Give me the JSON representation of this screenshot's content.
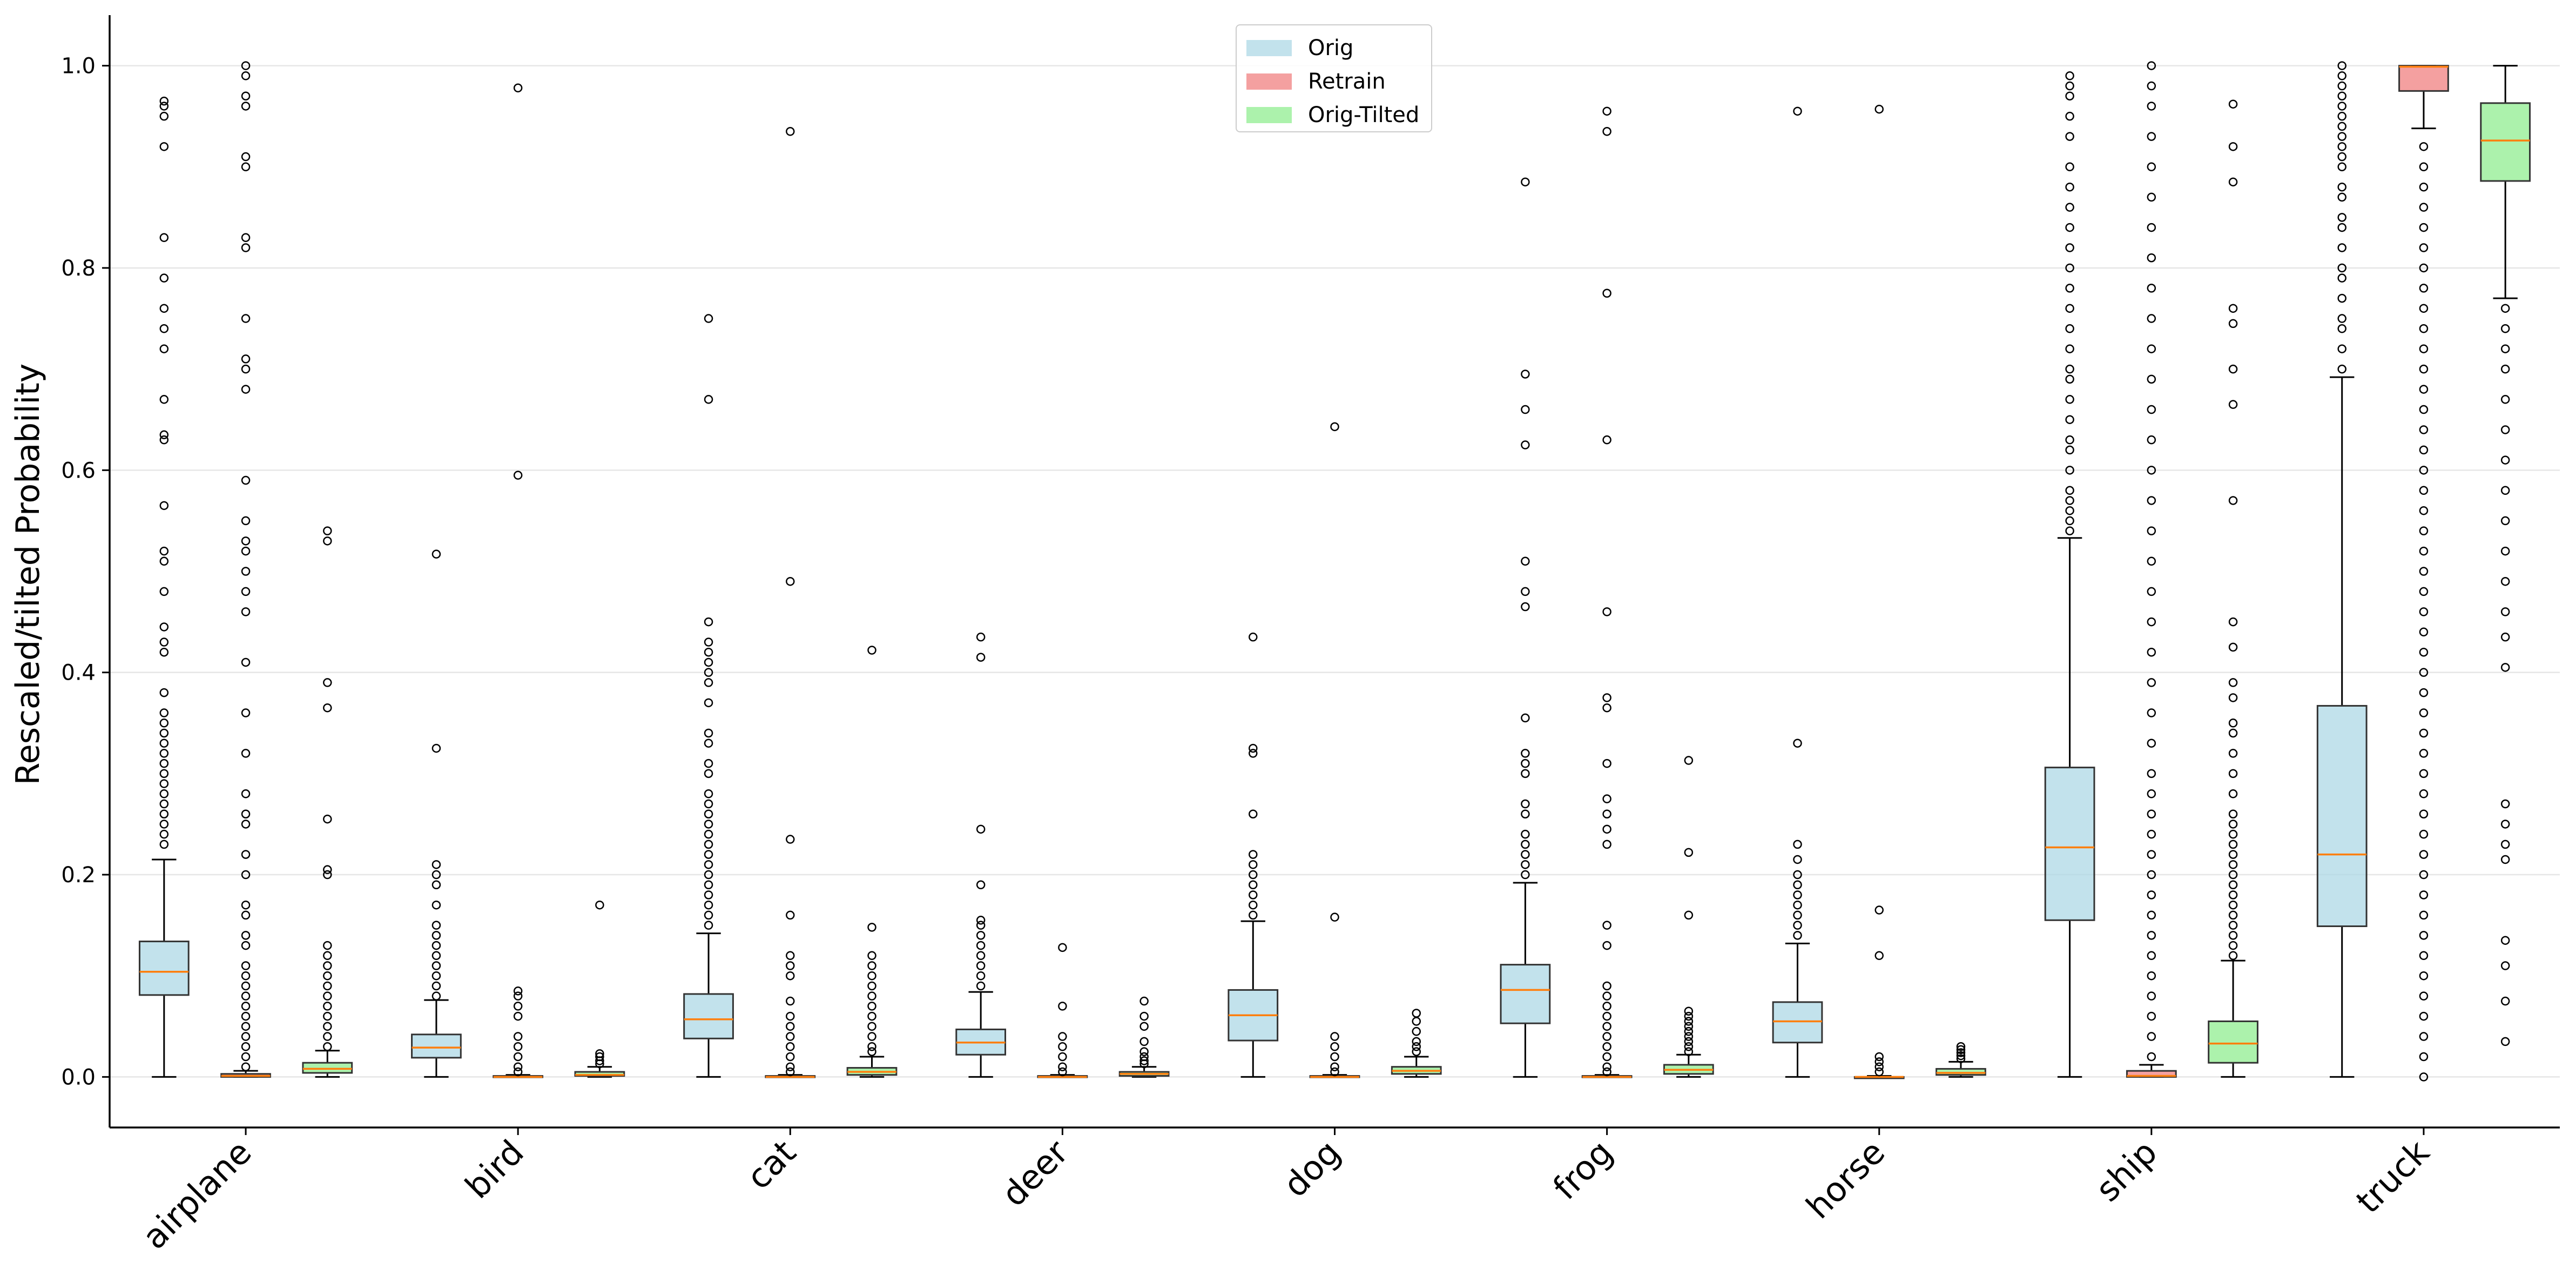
{
  "chart_data": {
    "type": "box",
    "ylabel": "Rescaled/tilted Probability",
    "xlabel": "",
    "ylim": [
      -0.05,
      1.05
    ],
    "yticks": [
      "0.0",
      "0.2",
      "0.4",
      "0.6",
      "0.8",
      "1.0"
    ],
    "grid": "horizontal",
    "legend_position": "top-center",
    "categories": [
      "airplane",
      "bird",
      "cat",
      "deer",
      "dog",
      "frog",
      "horse",
      "ship",
      "truck"
    ],
    "series": [
      {
        "name": "Orig",
        "color": "#add8e6",
        "boxes": [
          {
            "whislo": 0.0,
            "q1": 0.081,
            "med": 0.104,
            "q3": 0.134,
            "whishi": 0.215,
            "fliers": [
              0.23,
              0.24,
              0.25,
              0.26,
              0.27,
              0.28,
              0.29,
              0.3,
              0.31,
              0.32,
              0.33,
              0.34,
              0.35,
              0.36,
              0.38,
              0.42,
              0.43,
              0.445,
              0.48,
              0.51,
              0.52,
              0.565,
              0.63,
              0.635,
              0.67,
              0.72,
              0.74,
              0.76,
              0.79,
              0.83,
              0.92,
              0.95,
              0.96,
              0.965
            ]
          },
          {
            "whislo": 0.0,
            "q1": 0.019,
            "med": 0.029,
            "q3": 0.042,
            "whishi": 0.076,
            "fliers": [
              0.08,
              0.09,
              0.1,
              0.11,
              0.12,
              0.13,
              0.14,
              0.15,
              0.17,
              0.19,
              0.2,
              0.21,
              0.325,
              0.517
            ]
          },
          {
            "whislo": 0.0,
            "q1": 0.038,
            "med": 0.057,
            "q3": 0.082,
            "whishi": 0.142,
            "fliers": [
              0.15,
              0.16,
              0.17,
              0.18,
              0.19,
              0.2,
              0.21,
              0.22,
              0.23,
              0.24,
              0.25,
              0.26,
              0.27,
              0.28,
              0.3,
              0.31,
              0.33,
              0.34,
              0.37,
              0.39,
              0.4,
              0.41,
              0.42,
              0.43,
              0.45,
              0.67,
              0.75
            ]
          },
          {
            "whislo": 0.0,
            "q1": 0.022,
            "med": 0.034,
            "q3": 0.047,
            "whishi": 0.084,
            "fliers": [
              0.09,
              0.1,
              0.11,
              0.12,
              0.13,
              0.14,
              0.15,
              0.155,
              0.19,
              0.245,
              0.415,
              0.435
            ]
          },
          {
            "whislo": 0.0,
            "q1": 0.036,
            "med": 0.061,
            "q3": 0.086,
            "whishi": 0.154,
            "fliers": [
              0.16,
              0.17,
              0.18,
              0.19,
              0.2,
              0.21,
              0.22,
              0.26,
              0.32,
              0.325,
              0.435
            ]
          },
          {
            "whislo": 0.0,
            "q1": 0.053,
            "med": 0.086,
            "q3": 0.111,
            "whishi": 0.192,
            "fliers": [
              0.2,
              0.21,
              0.22,
              0.23,
              0.24,
              0.26,
              0.27,
              0.3,
              0.31,
              0.32,
              0.355,
              0.465,
              0.48,
              0.51,
              0.625,
              0.66,
              0.695,
              0.885
            ]
          },
          {
            "whislo": 0.0,
            "q1": 0.034,
            "med": 0.055,
            "q3": 0.074,
            "whishi": 0.132,
            "fliers": [
              0.14,
              0.15,
              0.16,
              0.17,
              0.18,
              0.19,
              0.2,
              0.215,
              0.23,
              0.33,
              0.955
            ]
          },
          {
            "whislo": 0.0,
            "q1": 0.155,
            "med": 0.227,
            "q3": 0.306,
            "whishi": 0.533,
            "fliers": [
              0.54,
              0.55,
              0.56,
              0.57,
              0.58,
              0.6,
              0.62,
              0.63,
              0.65,
              0.67,
              0.69,
              0.7,
              0.72,
              0.74,
              0.76,
              0.78,
              0.8,
              0.82,
              0.84,
              0.86,
              0.88,
              0.9,
              0.93,
              0.95,
              0.97,
              0.98,
              0.99
            ]
          },
          {
            "whislo": 0.0,
            "q1": 0.149,
            "med": 0.22,
            "q3": 0.367,
            "whishi": 0.692,
            "fliers": [
              0.7,
              0.72,
              0.74,
              0.75,
              0.77,
              0.79,
              0.8,
              0.82,
              0.84,
              0.85,
              0.87,
              0.88,
              0.9,
              0.91,
              0.92,
              0.93,
              0.94,
              0.95,
              0.96,
              0.97,
              0.98,
              0.99,
              1.0
            ]
          }
        ]
      },
      {
        "name": "Retrain",
        "color": "#f08080",
        "boxes": [
          {
            "whislo": 0.0,
            "q1": 0.0,
            "med": 0.001,
            "q3": 0.003,
            "whishi": 0.006,
            "fliers": [
              0.01,
              0.02,
              0.03,
              0.04,
              0.05,
              0.06,
              0.07,
              0.08,
              0.09,
              0.1,
              0.11,
              0.13,
              0.14,
              0.16,
              0.17,
              0.2,
              0.22,
              0.25,
              0.26,
              0.28,
              0.32,
              0.36,
              0.41,
              0.46,
              0.48,
              0.5,
              0.52,
              0.53,
              0.55,
              0.59,
              0.68,
              0.7,
              0.71,
              0.75,
              0.82,
              0.83,
              0.9,
              0.91,
              0.96,
              0.97,
              0.99,
              1.0
            ]
          },
          {
            "whislo": 0.0,
            "q1": 0.0,
            "med": 0.0,
            "q3": 0.001,
            "whishi": 0.002,
            "fliers": [
              0.005,
              0.01,
              0.02,
              0.03,
              0.04,
              0.06,
              0.07,
              0.08,
              0.085,
              0.595,
              0.978
            ]
          },
          {
            "whislo": 0.0,
            "q1": 0.0,
            "med": 0.0,
            "q3": 0.001,
            "whishi": 0.002,
            "fliers": [
              0.005,
              0.01,
              0.02,
              0.03,
              0.04,
              0.05,
              0.06,
              0.075,
              0.1,
              0.11,
              0.12,
              0.16,
              0.235,
              0.49,
              0.935
            ]
          },
          {
            "whislo": 0.0,
            "q1": 0.0,
            "med": 0.0,
            "q3": 0.001,
            "whishi": 0.002,
            "fliers": [
              0.005,
              0.01,
              0.02,
              0.03,
              0.04,
              0.07,
              0.128
            ]
          },
          {
            "whislo": 0.0,
            "q1": 0.0,
            "med": 0.0,
            "q3": 0.001,
            "whishi": 0.002,
            "fliers": [
              0.005,
              0.01,
              0.02,
              0.03,
              0.04,
              0.158,
              0.643
            ]
          },
          {
            "whislo": 0.0,
            "q1": 0.0,
            "med": 0.0,
            "q3": 0.001,
            "whishi": 0.002,
            "fliers": [
              0.005,
              0.01,
              0.02,
              0.03,
              0.04,
              0.05,
              0.06,
              0.07,
              0.08,
              0.09,
              0.13,
              0.15,
              0.23,
              0.245,
              0.26,
              0.275,
              0.31,
              0.365,
              0.375,
              0.46,
              0.63,
              0.775,
              0.935,
              0.955
            ]
          },
          {
            "whislo": 0.0,
            "q1": 0.0,
            "med": 0.0,
            "q3": 0.0,
            "whishi": 0.001,
            "fliers": [
              0.005,
              0.01,
              0.015,
              0.02,
              0.12,
              0.165,
              0.957
            ]
          },
          {
            "whislo": 0.0,
            "q1": 0.0,
            "med": 0.001,
            "q3": 0.006,
            "whishi": 0.012,
            "fliers": [
              0.02,
              0.04,
              0.06,
              0.08,
              0.1,
              0.12,
              0.14,
              0.16,
              0.18,
              0.2,
              0.22,
              0.24,
              0.26,
              0.28,
              0.3,
              0.33,
              0.36,
              0.39,
              0.42,
              0.45,
              0.48,
              0.51,
              0.54,
              0.57,
              0.6,
              0.63,
              0.66,
              0.69,
              0.72,
              0.75,
              0.78,
              0.81,
              0.84,
              0.87,
              0.9,
              0.93,
              0.96,
              0.98,
              1.0
            ]
          },
          {
            "whislo": 0.938,
            "q1": 0.975,
            "med": 0.999,
            "q3": 1.0,
            "whishi": 1.0,
            "fliers": [
              0.0,
              0.02,
              0.04,
              0.06,
              0.08,
              0.1,
              0.12,
              0.14,
              0.16,
              0.18,
              0.2,
              0.22,
              0.24,
              0.26,
              0.28,
              0.3,
              0.32,
              0.34,
              0.36,
              0.38,
              0.4,
              0.42,
              0.44,
              0.46,
              0.48,
              0.5,
              0.52,
              0.54,
              0.56,
              0.58,
              0.6,
              0.62,
              0.64,
              0.66,
              0.68,
              0.7,
              0.72,
              0.74,
              0.76,
              0.78,
              0.8,
              0.82,
              0.84,
              0.86,
              0.88,
              0.9,
              0.92
            ]
          }
        ]
      },
      {
        "name": "Orig-Tilted",
        "color": "#90ee90",
        "boxes": [
          {
            "whislo": 0.0,
            "q1": 0.004,
            "med": 0.008,
            "q3": 0.014,
            "whishi": 0.026,
            "fliers": [
              0.03,
              0.04,
              0.05,
              0.06,
              0.07,
              0.08,
              0.09,
              0.1,
              0.11,
              0.12,
              0.13,
              0.2,
              0.205,
              0.255,
              0.365,
              0.39,
              0.53,
              0.54
            ]
          },
          {
            "whislo": 0.0,
            "q1": 0.001,
            "med": 0.002,
            "q3": 0.005,
            "whishi": 0.01,
            "fliers": [
              0.013,
              0.016,
              0.02,
              0.023,
              0.17
            ]
          },
          {
            "whislo": 0.0,
            "q1": 0.002,
            "med": 0.005,
            "q3": 0.009,
            "whishi": 0.02,
            "fliers": [
              0.025,
              0.03,
              0.04,
              0.05,
              0.06,
              0.07,
              0.08,
              0.09,
              0.1,
              0.11,
              0.12,
              0.148,
              0.422
            ]
          },
          {
            "whislo": 0.0,
            "q1": 0.001,
            "med": 0.003,
            "q3": 0.005,
            "whishi": 0.01,
            "fliers": [
              0.013,
              0.016,
              0.02,
              0.025,
              0.035,
              0.05,
              0.06,
              0.075
            ]
          },
          {
            "whislo": 0.0,
            "q1": 0.003,
            "med": 0.006,
            "q3": 0.01,
            "whishi": 0.02,
            "fliers": [
              0.025,
              0.03,
              0.035,
              0.045,
              0.055,
              0.063
            ]
          },
          {
            "whislo": 0.0,
            "q1": 0.003,
            "med": 0.007,
            "q3": 0.012,
            "whishi": 0.022,
            "fliers": [
              0.025,
              0.03,
              0.035,
              0.04,
              0.045,
              0.05,
              0.055,
              0.06,
              0.065,
              0.16,
              0.222,
              0.313
            ]
          },
          {
            "whislo": 0.0,
            "q1": 0.002,
            "med": 0.004,
            "q3": 0.008,
            "whishi": 0.015,
            "fliers": [
              0.018,
              0.021,
              0.024,
              0.027,
              0.03
            ]
          },
          {
            "whislo": 0.0,
            "q1": 0.014,
            "med": 0.033,
            "q3": 0.055,
            "whishi": 0.115,
            "fliers": [
              0.12,
              0.13,
              0.14,
              0.15,
              0.16,
              0.17,
              0.18,
              0.19,
              0.2,
              0.21,
              0.22,
              0.23,
              0.24,
              0.25,
              0.26,
              0.28,
              0.3,
              0.32,
              0.34,
              0.35,
              0.375,
              0.39,
              0.425,
              0.45,
              0.57,
              0.665,
              0.7,
              0.745,
              0.76,
              0.885,
              0.92,
              0.962
            ]
          },
          {
            "whislo": 0.77,
            "q1": 0.886,
            "med": 0.926,
            "q3": 0.963,
            "whishi": 1.0,
            "fliers": [
              0.035,
              0.075,
              0.11,
              0.135,
              0.215,
              0.23,
              0.25,
              0.27,
              0.405,
              0.435,
              0.46,
              0.49,
              0.52,
              0.55,
              0.58,
              0.61,
              0.64,
              0.67,
              0.7,
              0.72,
              0.74,
              0.76
            ]
          }
        ]
      }
    ]
  }
}
